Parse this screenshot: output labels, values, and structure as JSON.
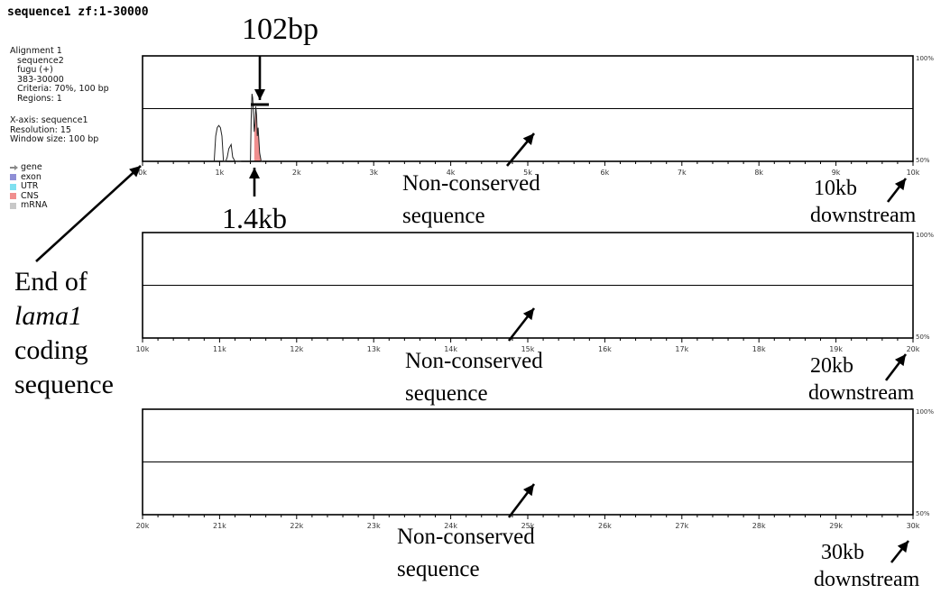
{
  "header": {
    "title": "sequence1 zf:1-30000"
  },
  "info": {
    "alignment": "Alignment 1",
    "sequence": "sequence2",
    "species": "fugu (+)",
    "range": "383-30000",
    "criteria": "Criteria: 70%, 100 bp",
    "regions": "Regions: 1",
    "xaxis": "X-axis: sequence1",
    "resolution": "Resolution: 15",
    "window": "Window size: 100 bp"
  },
  "legend": [
    {
      "label": "gene",
      "color": "#888888",
      "icon": "arrow-icon"
    },
    {
      "label": "exon",
      "color": "#8f8fd6",
      "icon": "square-icon"
    },
    {
      "label": "UTR",
      "color": "#7fe0f0",
      "icon": "square-icon"
    },
    {
      "label": "CNS",
      "color": "#f08e8e",
      "icon": "square-icon"
    },
    {
      "label": "mRNA",
      "color": "#c8c8c8",
      "icon": "square-icon"
    }
  ],
  "annotations": {
    "bp102": "102bp",
    "kb14": "1.4kb",
    "end_of": "End of",
    "lama1": "lama1",
    "coding": "coding",
    "sequence": "sequence",
    "nc_line1": "Non-conserved",
    "nc_line2": "sequence",
    "p1_right1": "10kb",
    "p1_right2": "downstream",
    "p2_right1": "20kb",
    "p2_right2": "downstream",
    "p3_right1": "30kb",
    "p3_right2": "downstream"
  },
  "chart_data": [
    {
      "type": "area",
      "xlim": [
        0,
        10
      ],
      "ylim": [
        50,
        100
      ],
      "ytick_top": "100%",
      "ytick_bottom": "50%",
      "midline": 75,
      "tick_labels": [
        "0k",
        "1k",
        "2k",
        "3k",
        "4k",
        "5k",
        "6k",
        "7k",
        "8k",
        "9k",
        "10k"
      ],
      "series": [
        {
          "x": [
            0.93,
            0.95,
            0.97,
            0.99,
            1.01,
            1.03,
            1.05,
            1.08,
            1.1,
            1.12,
            1.15,
            1.17,
            1.2,
            1.22,
            1.24,
            1.28
          ],
          "y": [
            50,
            62,
            66,
            67,
            66,
            62,
            50,
            50,
            52,
            56,
            58,
            52,
            50,
            50,
            50,
            50
          ]
        },
        {
          "x": [
            1.4,
            1.41,
            1.42,
            1.43,
            1.44,
            1.45,
            1.46,
            1.47,
            1.48,
            1.49,
            1.5,
            1.52,
            1.54,
            1.56
          ],
          "y": [
            50,
            70,
            82,
            80,
            72,
            64,
            68,
            76,
            72,
            62,
            66,
            54,
            50,
            50
          ],
          "highlight_range": [
            1.45,
            1.57
          ],
          "highlight_color": "#f08e8e"
        }
      ]
    },
    {
      "type": "area",
      "xlim": [
        10,
        20
      ],
      "ylim": [
        50,
        100
      ],
      "ytick_top": "100%",
      "ytick_bottom": "50%",
      "midline": 75,
      "tick_labels": [
        "10k",
        "11k",
        "12k",
        "13k",
        "14k",
        "15k",
        "16k",
        "17k",
        "18k",
        "19k",
        "20k"
      ],
      "series": []
    },
    {
      "type": "area",
      "xlim": [
        20,
        30
      ],
      "ylim": [
        50,
        100
      ],
      "ytick_top": "100%",
      "ytick_bottom": "50%",
      "midline": 75,
      "tick_labels": [
        "20k",
        "21k",
        "22k",
        "23k",
        "24k",
        "25k",
        "26k",
        "27k",
        "28k",
        "29k",
        "30k"
      ],
      "series": []
    }
  ]
}
